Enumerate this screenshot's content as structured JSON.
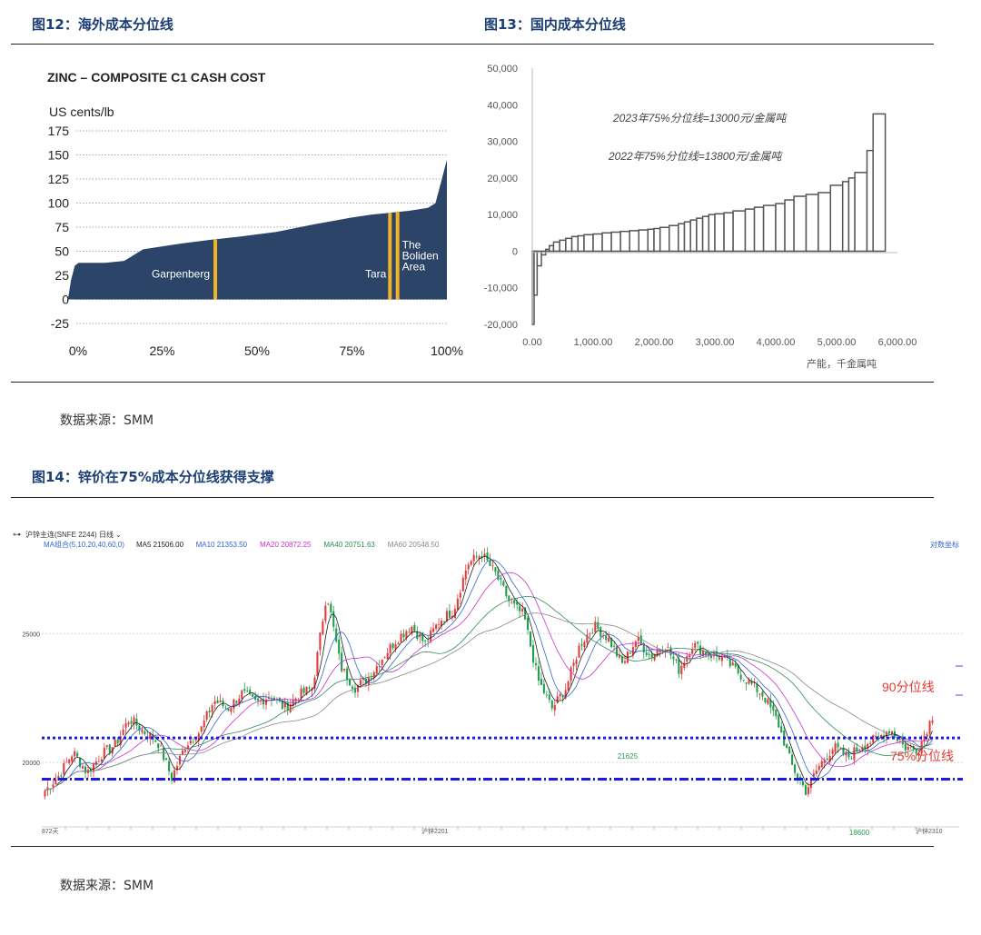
{
  "fig12": {
    "caption": "图12：海外成本分位线",
    "chart_title": "ZINC – COMPOSITE C1 CASH COST",
    "unit": "US cents/lb",
    "colors": {
      "area": "#2b4468",
      "marker": "#f0b323",
      "grid": "#9aa5b5"
    }
  },
  "fig13": {
    "caption": "图13：国内成本分位线",
    "annotation_2023": "2023年75%分位线=13000元/金属吨",
    "annotation_2022": "2022年75%分位线=13800元/金属吨",
    "xlabel": "产能，千金属吨",
    "colors": {
      "bar": "#555555"
    }
  },
  "fig14": {
    "caption": "图14：锌价在75%成本分位线获得支撑",
    "header_label": "沪锌主连(SNFE 2244)",
    "period_label": "日线",
    "ma_combo": "MA组合(5,10,20,40,60,0)",
    "ma": [
      {
        "label": "MA5 21506.00",
        "color": "#222222"
      },
      {
        "label": "MA10 21353.50",
        "color": "#3366cc"
      },
      {
        "label": "MA20 20872.25",
        "color": "#cc33cc"
      },
      {
        "label": "MA40 20751.63",
        "color": "#2e8b57"
      },
      {
        "label": "MA60 20548.50",
        "color": "#888888"
      }
    ],
    "coord_label": "对数坐标",
    "line90_label": "90分位线",
    "line75_label": "75%分位线",
    "low1_label": "21625",
    "low2_label": "18600",
    "bottom_left_label": "872天",
    "bottom_mid_label": "沪锌2201",
    "bottom_right_label": "沪锌2310",
    "colors": {
      "up": "#e23b3b",
      "down": "#1e9e4a",
      "line": "#1a1ae6",
      "red_label": "#e53935"
    }
  },
  "source_1": "数据来源：SMM",
  "source_2": "数据来源：SMM",
  "chart_data": [
    {
      "type": "area",
      "title": "ZINC – COMPOSITE C1 CASH COST",
      "ylabel": "US cents/lb",
      "ylim": [
        -25,
        175
      ],
      "yticks": [
        175,
        150,
        125,
        100,
        75,
        50,
        25,
        0,
        -25
      ],
      "xticks": [
        "0%",
        "25%",
        "50%",
        "75%",
        "100%"
      ],
      "x_percent": [
        0,
        1,
        2,
        3,
        10,
        15,
        20,
        30,
        38,
        45,
        55,
        65,
        75,
        80,
        85,
        90,
        95,
        97,
        98,
        99,
        100
      ],
      "y_cents_per_lb": [
        -5,
        20,
        35,
        38,
        38,
        40,
        52,
        58,
        62,
        65,
        70,
        78,
        85,
        88,
        90,
        92,
        95,
        100,
        115,
        130,
        145
      ],
      "markers": [
        {
          "label": "Garpenberg",
          "x_percent": 39
        },
        {
          "label": "Tara",
          "x_percent": 85
        },
        {
          "label": "The Boliden Area",
          "x_percent": 87
        }
      ],
      "grid": true
    },
    {
      "type": "bar",
      "xlabel": "产能，千金属吨",
      "xlim": [
        0,
        6000
      ],
      "ylim": [
        -20000,
        50000
      ],
      "yticks": [
        "50,000",
        "40,000",
        "30,000",
        "20,000",
        "10,000",
        "0",
        "-10,000",
        "-20,000"
      ],
      "xticks": [
        "0.00",
        "1,000.00",
        "2,000.00",
        "3,000.00",
        "4,000.00",
        "5,000.00",
        "6,000.00"
      ],
      "cumulative_capacity": [
        30,
        80,
        150,
        220,
        280,
        350,
        450,
        550,
        650,
        750,
        850,
        1000,
        1150,
        1300,
        1450,
        1600,
        1750,
        1900,
        2000,
        2100,
        2250,
        2400,
        2500,
        2600,
        2700,
        2800,
        2900,
        3000,
        3150,
        3300,
        3500,
        3650,
        3800,
        4000,
        4150,
        4300,
        4500,
        4700,
        4900,
        5100,
        5200,
        5300,
        5500,
        5600,
        5800
      ],
      "cost_yuan_per_t": [
        -20000,
        -12000,
        -4000,
        -1000,
        500,
        1500,
        2500,
        3000,
        3500,
        4000,
        4200,
        4500,
        4700,
        5000,
        5200,
        5400,
        5600,
        5800,
        6000,
        6200,
        6500,
        7000,
        7500,
        8000,
        8500,
        9000,
        9500,
        10000,
        10200,
        10500,
        11000,
        11500,
        12000,
        12500,
        13000,
        14000,
        15000,
        15500,
        16000,
        18000,
        19000,
        20000,
        21500,
        27500,
        37500
      ],
      "annotations": [
        "2023年75%分位线=13000元/金属吨",
        "2022年75%分位线=13800元/金属吨"
      ]
    },
    {
      "type": "candlestick",
      "title": "沪锌主连(SNFE 2244)",
      "yticks": [
        "25000",
        "20000"
      ],
      "ylim": [
        17500,
        28500
      ],
      "levels": [
        {
          "name": "90分位线",
          "value": 20950,
          "style": "dotted"
        },
        {
          "name": "75%分位线",
          "value": 19350,
          "style": "dash-dot"
        }
      ],
      "anchors_close": [
        18900,
        19500,
        20400,
        19600,
        20300,
        20700,
        21700,
        21200,
        20800,
        19400,
        20700,
        21200,
        22400,
        22100,
        22700,
        22300,
        22600,
        22100,
        22600,
        22900,
        26600,
        23700,
        22900,
        23300,
        24100,
        24800,
        25300,
        24600,
        25500,
        25900,
        27700,
        28100,
        27300,
        26200,
        25700,
        23200,
        22100,
        22900,
        24600,
        25300,
        24800,
        23800,
        24800,
        24100,
        24600,
        23600,
        24600,
        24200,
        24100,
        23600,
        23100,
        22600,
        21600,
        19900,
        18900,
        19900,
        20600,
        20200,
        20700,
        20900,
        21300,
        20600,
        20500,
        21800
      ],
      "annotations": [
        "21625",
        "18600"
      ]
    }
  ]
}
